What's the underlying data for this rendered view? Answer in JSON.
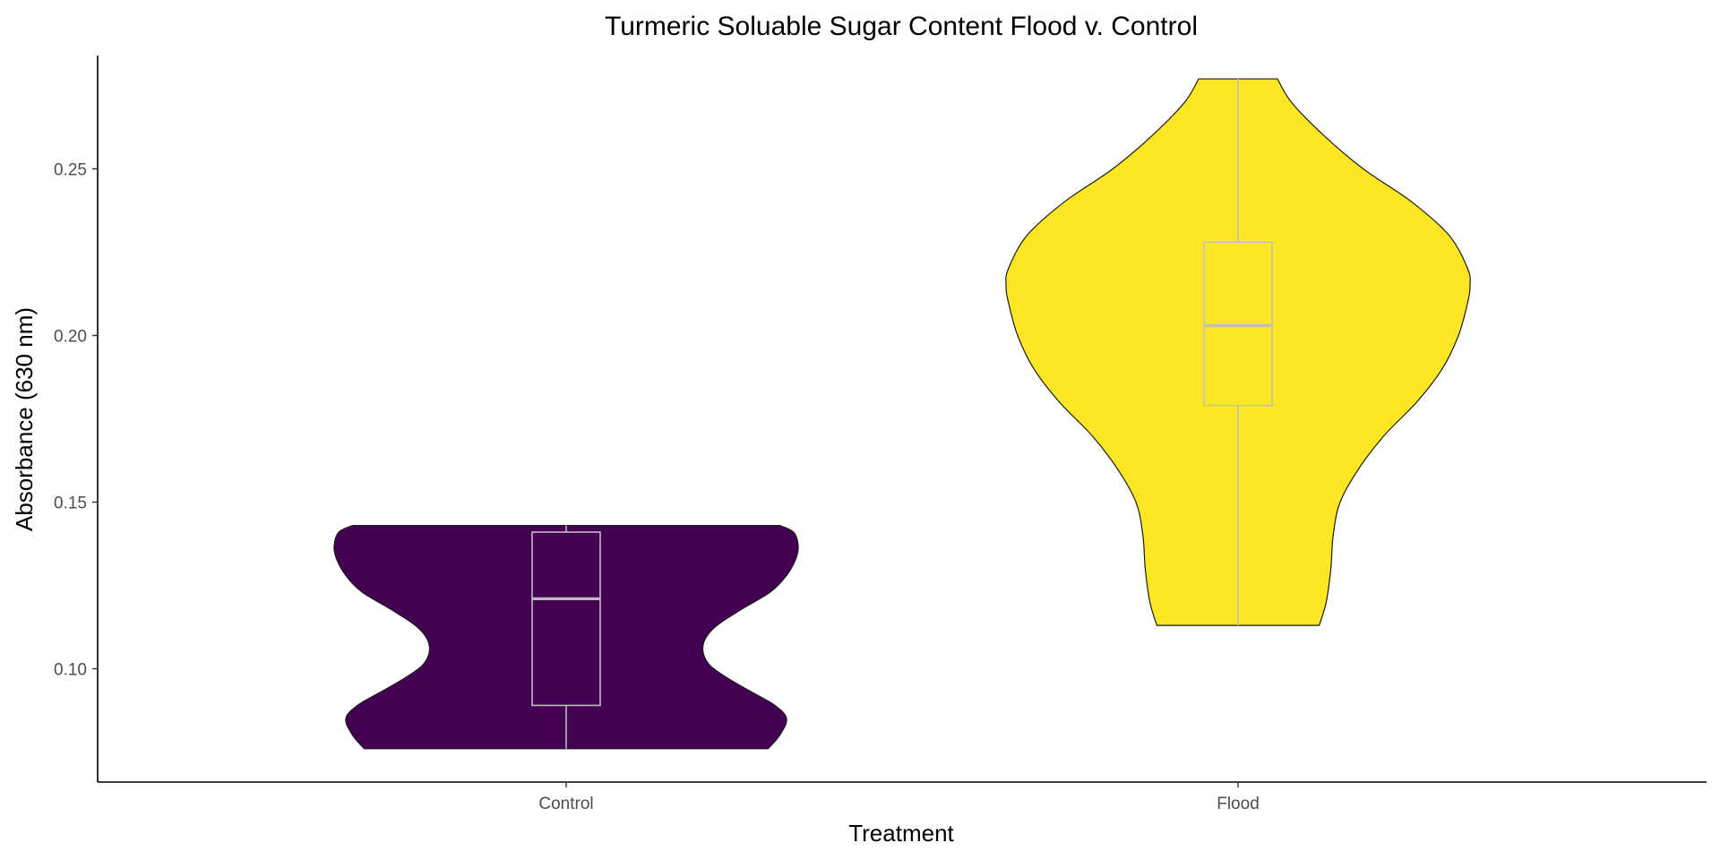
{
  "chart_data": {
    "type": "violin",
    "title": "Turmeric Soluable Sugar Content Flood v. Control",
    "xlabel": "Treatment",
    "ylabel": "Absorbance (630 nm)",
    "categories": [
      "Control",
      "Flood"
    ],
    "ylim": [
      0.066,
      0.284
    ],
    "yticks": [
      0.1,
      0.15,
      0.2,
      0.25
    ],
    "ytick_labels": [
      "0.10",
      "0.15",
      "0.20",
      "0.25"
    ],
    "grid": false,
    "legend": "none",
    "series": [
      {
        "category": "Control",
        "fill": "#440154",
        "min": 0.076,
        "max": 0.143,
        "box": {
          "lower_whisker": 0.076,
          "q1": 0.089,
          "median": 0.121,
          "q3": 0.141,
          "upper_whisker": 0.143
        },
        "density_profile": [
          [
            0.076,
            0.87
          ],
          [
            0.08,
            0.92
          ],
          [
            0.085,
            0.95
          ],
          [
            0.089,
            0.9
          ],
          [
            0.093,
            0.8
          ],
          [
            0.097,
            0.7
          ],
          [
            0.101,
            0.62
          ],
          [
            0.105,
            0.59
          ],
          [
            0.109,
            0.6
          ],
          [
            0.113,
            0.65
          ],
          [
            0.118,
            0.76
          ],
          [
            0.123,
            0.88
          ],
          [
            0.128,
            0.95
          ],
          [
            0.133,
            0.99
          ],
          [
            0.137,
            1.0
          ],
          [
            0.141,
            0.98
          ],
          [
            0.143,
            0.92
          ]
        ]
      },
      {
        "category": "Flood",
        "fill": "#FDE725",
        "min": 0.113,
        "max": 0.277,
        "box": {
          "lower_whisker": 0.113,
          "q1": 0.179,
          "median": 0.203,
          "q3": 0.228,
          "upper_whisker": 0.277
        },
        "density_profile": [
          [
            0.113,
            0.35
          ],
          [
            0.12,
            0.38
          ],
          [
            0.13,
            0.4
          ],
          [
            0.14,
            0.41
          ],
          [
            0.15,
            0.44
          ],
          [
            0.16,
            0.52
          ],
          [
            0.17,
            0.63
          ],
          [
            0.18,
            0.77
          ],
          [
            0.19,
            0.88
          ],
          [
            0.2,
            0.95
          ],
          [
            0.21,
            0.99
          ],
          [
            0.215,
            1.0
          ],
          [
            0.22,
            0.99
          ],
          [
            0.23,
            0.91
          ],
          [
            0.24,
            0.75
          ],
          [
            0.25,
            0.54
          ],
          [
            0.26,
            0.37
          ],
          [
            0.27,
            0.23
          ],
          [
            0.277,
            0.17
          ]
        ]
      }
    ],
    "colors": {
      "violin_outline": "#1a1a1a",
      "box_stroke": "#BEBEBE",
      "axis_line": "#000000",
      "tick_text": "#4d4d4d"
    }
  }
}
